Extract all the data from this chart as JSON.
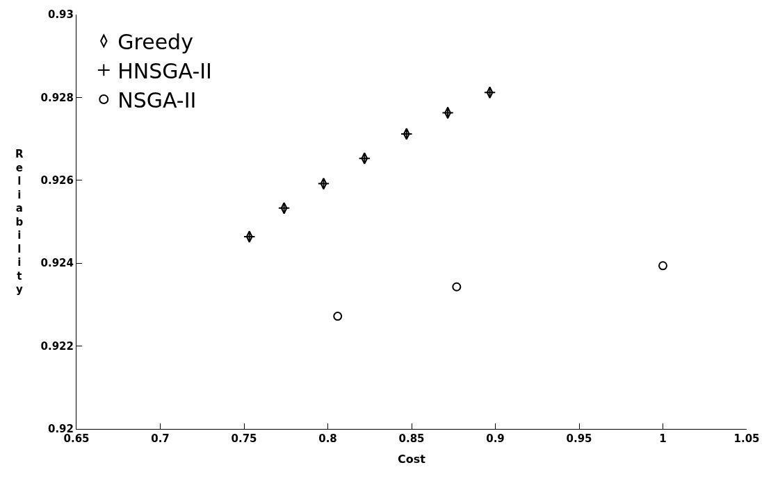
{
  "chart_data": {
    "type": "scatter",
    "xlabel": "Cost",
    "ylabel": "Reliability",
    "xlim": [
      0.65,
      1.05
    ],
    "xticks": [
      0.65,
      0.7,
      0.75,
      0.8,
      0.85,
      0.9,
      0.95,
      1,
      1.05
    ],
    "ylim": [
      0.92,
      0.93
    ],
    "yticks": [
      0.92,
      0.922,
      0.924,
      0.926,
      0.928,
      0.93
    ],
    "legend": "top left",
    "series": [
      {
        "name": "Greedy",
        "color": "#000000",
        "marker": "diamond",
        "x": [
          0.7532,
          0.7739,
          0.7975,
          0.8219,
          0.847,
          0.8716,
          0.8967
        ],
        "values": [
          0.92464,
          0.92533,
          0.92592,
          0.92653,
          0.92712,
          0.92763,
          0.92812
        ]
      },
      {
        "name": "HNSGA-II",
        "color": "#000000",
        "marker": "cross",
        "x": [
          0.7532,
          0.7739,
          0.7975,
          0.8219,
          0.847,
          0.8716,
          0.8967
        ],
        "values": [
          0.92464,
          0.92533,
          0.92592,
          0.92653,
          0.92712,
          0.92763,
          0.92812
        ]
      },
      {
        "name": "NSGA-II",
        "color": "#000000",
        "marker": "circle",
        "x": [
          0.8059,
          0.8769,
          1.0
        ],
        "values": [
          0.92272,
          0.92343,
          0.92394
        ]
      }
    ]
  }
}
